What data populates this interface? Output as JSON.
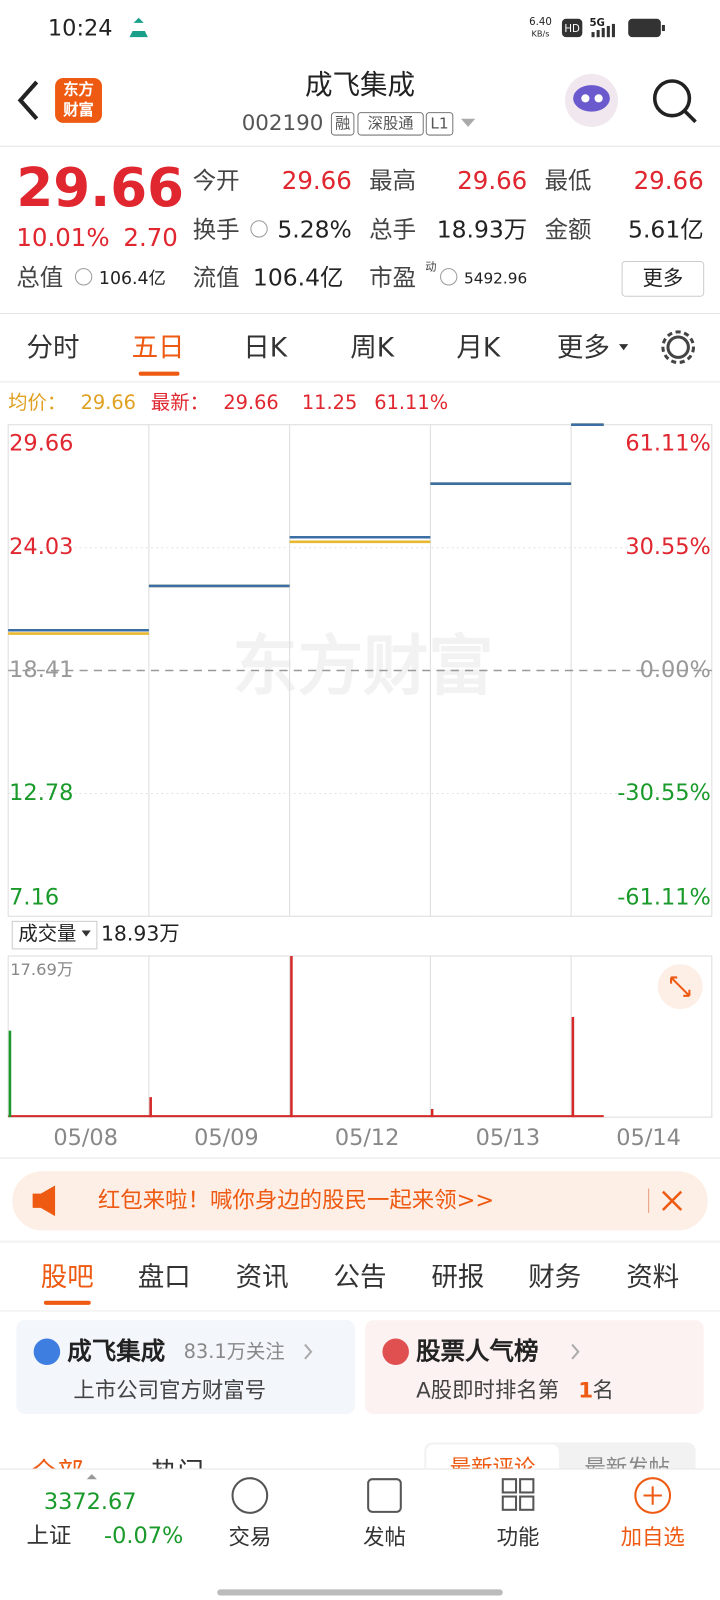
{
  "status_bar": {
    "time": "10:24",
    "net_speed": "6.40",
    "net_unit": "KB/s",
    "hd": "HD",
    "signal": "5G"
  },
  "header": {
    "logo_lines": [
      "东方",
      "财富"
    ],
    "title": "成飞集成",
    "code": "002190",
    "tags": [
      "融",
      "深股通",
      "L1"
    ]
  },
  "quote": {
    "price": "29.66",
    "change_pct": "10.01%",
    "change": "2.70",
    "stats": [
      [
        {
          "label": "今开",
          "value": "29.66"
        },
        {
          "label": "最高",
          "value": "29.66"
        },
        {
          "label": "最低",
          "value": "29.66"
        }
      ],
      [
        {
          "label": "换手",
          "value": "5.28%"
        },
        {
          "label": "总手",
          "value": "18.93万"
        },
        {
          "label": "金额",
          "value": "5.61亿"
        }
      ]
    ],
    "total_value": {
      "label": "总值",
      "value": "106.4亿"
    },
    "float_value": {
      "label": "流值",
      "value": "106.4亿"
    },
    "pe": {
      "label": "市盈",
      "sup": "动",
      "value": "5492.96"
    },
    "more": "更多"
  },
  "tabs": [
    "分时",
    "五日",
    "日K",
    "周K",
    "月K",
    "更多"
  ],
  "chart_info": {
    "avg_label": "均价：",
    "avg": "29.66",
    "latest_label": "最新：",
    "latest": "29.66",
    "change": "11.25",
    "change_pct": "61.11%"
  },
  "price_chart": {
    "type": "line",
    "watermark": "东方财富",
    "categories": [
      "05/08",
      "05/09",
      "05/12",
      "05/13",
      "05/14"
    ],
    "ylim": [
      7.16,
      29.66
    ],
    "yticks": [
      29.66,
      24.03,
      18.41,
      12.78,
      7.16
    ],
    "tick_colors": [
      "#e0262f",
      "#e0262f",
      "#999999",
      "#1a9a2a",
      "#1a9a2a"
    ],
    "right_labels": [
      "61.11%",
      "30.55%",
      "0.00%",
      "-30.55%",
      "-61.11%"
    ],
    "series": [
      {
        "name": "最新",
        "color": "#3a6ea5",
        "values": [
          20.25,
          22.28,
          24.51,
          26.96,
          29.66
        ]
      },
      {
        "name": "均价",
        "color": "#e8b830",
        "values": [
          20.1,
          22.28,
          24.3,
          26.96,
          29.66
        ]
      }
    ]
  },
  "volume": {
    "selector": "成交量",
    "total": "18.93万",
    "max_label": "17.69万",
    "ylim": [
      0,
      17.69
    ],
    "values": [
      9.5,
      2.2,
      17.69,
      0.9,
      11.0
    ],
    "colors": [
      "#1a9a2a",
      "#d42a2a",
      "#d42a2a",
      "#d42a2a",
      "#d42a2a"
    ]
  },
  "banner": "红包来啦！喊你身边的股民一起来领>>",
  "section_tabs": [
    "股吧",
    "盘口",
    "资讯",
    "公告",
    "研报",
    "财务",
    "资料"
  ],
  "cards": [
    {
      "title": "成飞集成",
      "meta": "83.1万关注",
      "subtitle": "上市公司官方财富号"
    },
    {
      "title": "股票人气榜",
      "subtitle_prefix": "A股即时排名第",
      "rank": "1",
      "subtitle_suffix": "名"
    }
  ],
  "feed_tabs": [
    "全部",
    "热门"
  ],
  "sort_tabs": [
    "最新评论",
    "最新发帖"
  ],
  "bottom_bar": {
    "index_value": "3372.67",
    "index_name": "上证",
    "index_change": "-0.07%",
    "items": [
      "交易",
      "发帖",
      "功能",
      "加自选"
    ]
  }
}
